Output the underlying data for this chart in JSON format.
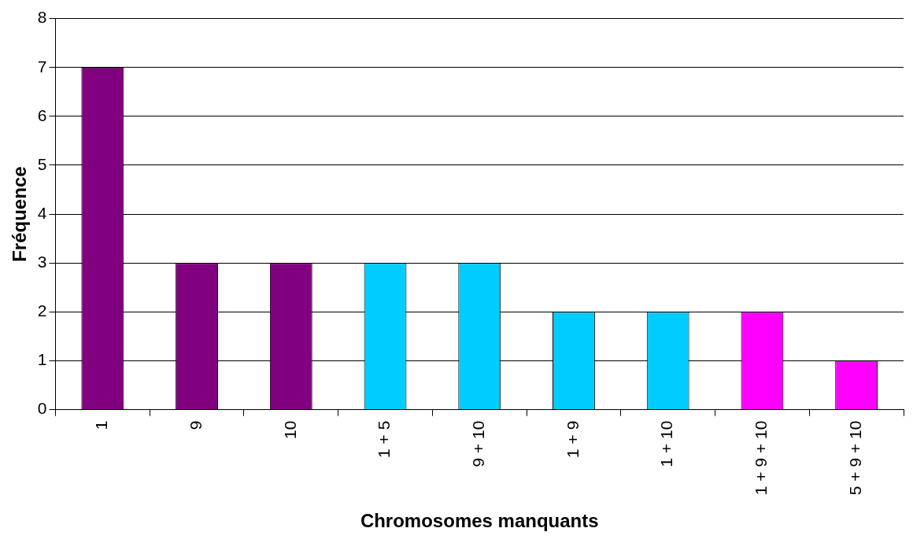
{
  "chart_data": {
    "type": "bar",
    "xlabel": "Chromosomes manquants",
    "ylabel": "Fréquence",
    "categories": [
      "1",
      "9",
      "10",
      "1 + 5",
      "9 + 10",
      "1 + 9",
      "1 + 10",
      "1 + 9 + 10",
      "5 + 9 + 10"
    ],
    "values": [
      7,
      3,
      3,
      3,
      3,
      2,
      2,
      2,
      1
    ],
    "colors": [
      "#800080",
      "#800080",
      "#800080",
      "#00ccff",
      "#00ccff",
      "#00ccff",
      "#00ccff",
      "#ff00ff",
      "#ff00ff"
    ],
    "ylim": [
      0,
      8
    ],
    "yticks": [
      0,
      1,
      2,
      3,
      4,
      5,
      6,
      7,
      8
    ],
    "grid": "y",
    "legend": false
  }
}
